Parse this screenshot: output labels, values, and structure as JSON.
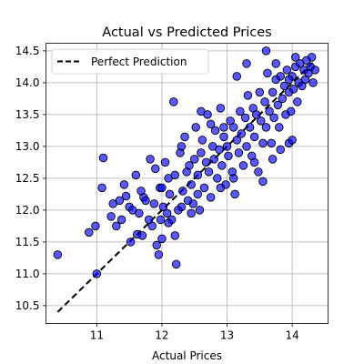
{
  "chart_data": {
    "type": "scatter",
    "title": "Actual vs Predicted Prices",
    "xlabel": "Actual Prices",
    "ylabel": "",
    "xlim": [
      10.22,
      14.55
    ],
    "ylim": [
      10.22,
      14.62
    ],
    "xticks": [
      11,
      12,
      13,
      14
    ],
    "yticks": [
      10.5,
      11.0,
      11.5,
      12.0,
      12.5,
      13.0,
      13.5,
      14.0,
      14.5
    ],
    "xtick_labels": [
      "11",
      "12",
      "13",
      "14"
    ],
    "ytick_labels": [
      "10.5",
      "11.0",
      "11.5",
      "12.0",
      "12.5",
      "13.0",
      "13.5",
      "14.0",
      "14.5"
    ],
    "grid": true,
    "legend": {
      "placement": "upper-left",
      "entries": [
        {
          "label": "Perfect Prediction",
          "style": "dashed-line",
          "color": "#000000"
        }
      ]
    },
    "reference_line": {
      "label": "Perfect Prediction",
      "x": [
        10.4,
        14.35
      ],
      "y": [
        10.4,
        14.35
      ],
      "color": "#000000"
    },
    "marker": {
      "fill": "#0000ff",
      "fill_opacity": 0.65,
      "edge": "#000000"
    },
    "series": [
      {
        "points": [
          [
            10.4,
            11.3
          ],
          [
            10.88,
            11.65
          ],
          [
            10.98,
            11.75
          ],
          [
            11.0,
            11.0
          ],
          [
            11.08,
            12.35
          ],
          [
            11.1,
            12.82
          ],
          [
            11.22,
            11.9
          ],
          [
            11.25,
            12.1
          ],
          [
            11.3,
            11.75
          ],
          [
            11.35,
            12.15
          ],
          [
            11.38,
            11.85
          ],
          [
            11.42,
            12.4
          ],
          [
            11.45,
            12.22
          ],
          [
            11.5,
            12.05
          ],
          [
            11.52,
            11.5
          ],
          [
            11.55,
            12.0
          ],
          [
            11.6,
            12.55
          ],
          [
            11.62,
            11.62
          ],
          [
            11.65,
            11.95
          ],
          [
            11.68,
            12.3
          ],
          [
            11.7,
            11.6
          ],
          [
            11.72,
            12.2
          ],
          [
            11.75,
            12.15
          ],
          [
            11.8,
            11.85
          ],
          [
            11.82,
            12.8
          ],
          [
            11.85,
            11.75
          ],
          [
            11.88,
            12.1
          ],
          [
            11.9,
            12.65
          ],
          [
            11.92,
            11.45
          ],
          [
            11.95,
            11.3
          ],
          [
            11.97,
            12.35
          ],
          [
            12.0,
            11.55
          ],
          [
            12.02,
            12.05
          ],
          [
            12.05,
            12.75
          ],
          [
            12.08,
            11.95
          ],
          [
            12.1,
            12.5
          ],
          [
            12.12,
            12.25
          ],
          [
            12.15,
            11.85
          ],
          [
            12.18,
            13.7
          ],
          [
            12.2,
            11.6
          ],
          [
            12.22,
            11.15
          ],
          [
            12.25,
            12.0
          ],
          [
            12.28,
            12.9
          ],
          [
            12.3,
            13.0
          ],
          [
            12.32,
            12.3
          ],
          [
            12.35,
            13.15
          ],
          [
            12.38,
            12.6
          ],
          [
            12.4,
            12.15
          ],
          [
            12.42,
            12.7
          ],
          [
            12.45,
            12.4
          ],
          [
            12.48,
            12.1
          ],
          [
            12.5,
            12.8
          ],
          [
            12.52,
            13.3
          ],
          [
            12.55,
            12.55
          ],
          [
            12.58,
            12.0
          ],
          [
            12.6,
            12.9
          ],
          [
            12.62,
            13.1
          ],
          [
            12.65,
            12.35
          ],
          [
            12.68,
            12.75
          ],
          [
            12.7,
            13.5
          ],
          [
            12.72,
            12.6
          ],
          [
            12.75,
            12.2
          ],
          [
            12.78,
            13.0
          ],
          [
            12.8,
            12.8
          ],
          [
            12.82,
            13.25
          ],
          [
            12.85,
            12.5
          ],
          [
            12.88,
            12.95
          ],
          [
            12.9,
            13.6
          ],
          [
            12.92,
            12.7
          ],
          [
            12.95,
            13.15
          ],
          [
            12.98,
            12.4
          ],
          [
            13.0,
            13.0
          ],
          [
            13.02,
            12.85
          ],
          [
            13.05,
            13.4
          ],
          [
            13.08,
            12.6
          ],
          [
            13.1,
            13.3
          ],
          [
            13.12,
            12.25
          ],
          [
            13.15,
            13.1
          ],
          [
            13.18,
            12.9
          ],
          [
            13.2,
            13.55
          ],
          [
            13.22,
            13.2
          ],
          [
            13.25,
            12.7
          ],
          [
            13.28,
            13.45
          ],
          [
            13.3,
            13.0
          ],
          [
            13.32,
            13.8
          ],
          [
            13.35,
            13.3
          ],
          [
            13.38,
            12.85
          ],
          [
            13.4,
            13.6
          ],
          [
            13.42,
            13.15
          ],
          [
            13.45,
            13.5
          ],
          [
            13.48,
            12.6
          ],
          [
            13.5,
            13.85
          ],
          [
            13.52,
            13.4
          ],
          [
            13.55,
            13.05
          ],
          [
            13.58,
            13.7
          ],
          [
            13.6,
            13.3
          ],
          [
            13.62,
            14.15
          ],
          [
            13.65,
            13.55
          ],
          [
            13.68,
            13.05
          ],
          [
            13.7,
            13.85
          ],
          [
            13.72,
            13.45
          ],
          [
            13.75,
            14.05
          ],
          [
            13.78,
            13.65
          ],
          [
            13.8,
            13.3
          ],
          [
            13.82,
            14.1
          ],
          [
            13.85,
            13.75
          ],
          [
            13.88,
            13.95
          ],
          [
            13.9,
            13.5
          ],
          [
            13.92,
            14.2
          ],
          [
            13.95,
            13.85
          ],
          [
            13.98,
            13.55
          ],
          [
            14.0,
            14.1
          ],
          [
            14.02,
            13.9
          ],
          [
            14.05,
            14.25
          ],
          [
            14.08,
            13.7
          ],
          [
            14.1,
            14.0
          ],
          [
            14.12,
            14.3
          ],
          [
            14.15,
            13.95
          ],
          [
            14.18,
            14.2
          ],
          [
            14.2,
            14.05
          ],
          [
            14.22,
            14.35
          ],
          [
            14.25,
            14.15
          ],
          [
            14.28,
            14.25
          ],
          [
            14.3,
            14.4
          ],
          [
            14.32,
            14.0
          ],
          [
            14.35,
            14.2
          ],
          [
            13.55,
            12.45
          ],
          [
            13.7,
            12.8
          ],
          [
            13.82,
            12.95
          ],
          [
            13.95,
            13.05
          ],
          [
            14.0,
            13.1
          ],
          [
            13.6,
            14.5
          ],
          [
            13.95,
            14.05
          ],
          [
            12.95,
            13.3
          ],
          [
            12.1,
            11.8
          ],
          [
            12.6,
            13.55
          ],
          [
            12.75,
            13.35
          ],
          [
            13.3,
            14.3
          ],
          [
            13.15,
            14.1
          ],
          [
            12.3,
            12.05
          ],
          [
            12.0,
            12.35
          ],
          [
            12.45,
            11.95
          ],
          [
            11.98,
            11.85
          ],
          [
            13.42,
            12.75
          ],
          [
            13.75,
            14.3
          ],
          [
            14.05,
            14.4
          ],
          [
            12.55,
            12.25
          ],
          [
            12.9,
            12.35
          ],
          [
            13.1,
            12.5
          ],
          [
            12.2,
            12.55
          ]
        ]
      }
    ]
  }
}
